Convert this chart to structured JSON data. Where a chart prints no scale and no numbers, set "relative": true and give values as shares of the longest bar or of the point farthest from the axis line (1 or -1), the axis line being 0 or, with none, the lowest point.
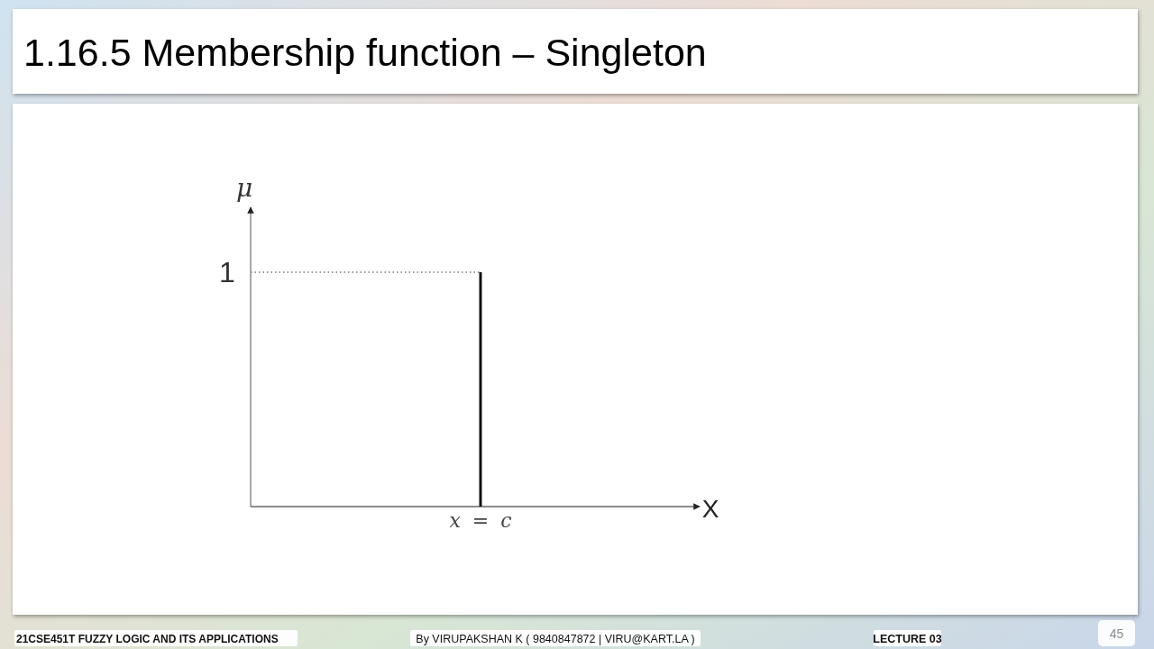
{
  "chart_data": {
    "type": "bar",
    "title": "1.16.5 Membership function – Singleton",
    "categories": [
      "x = c"
    ],
    "values": [
      1
    ],
    "relative": true,
    "color": "#111111",
    "ref_lines": [
      {
        "axis": "y",
        "value": 1,
        "label": "1",
        "line_style": "dotted",
        "color": "#9a9a9a"
      }
    ],
    "annotations": [
      "μ",
      "X",
      "21CSE451T FUZZY LOGIC AND ITS APPLICATIONS",
      "By VIRUPAKSHAN K ( 9840847872 | VIRU@KART.LA )",
      "LECTURE 03",
      "45"
    ]
  }
}
